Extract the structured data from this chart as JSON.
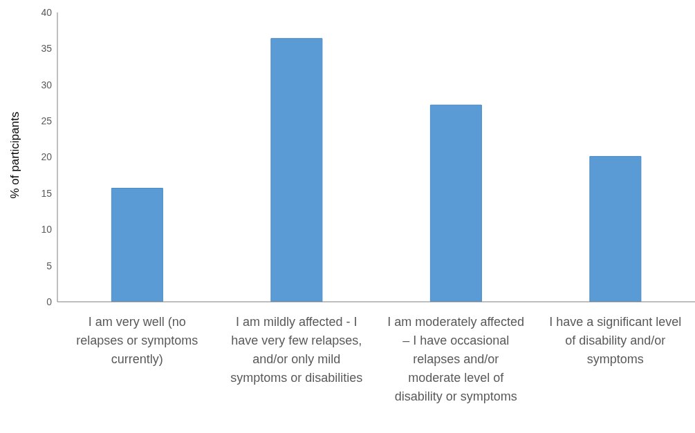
{
  "chart_data": {
    "type": "bar",
    "ylabel": "% of participants",
    "categories": [
      "I am very well (no relapses or symptoms currently)",
      "I am mildly affected - I have very few relapses, and/or only mild symptoms or disabilities",
      "I am moderately affected – I have occasional relapses and/or moderate level of disability or symptoms",
      "I have a significant level of disability and/or symptoms"
    ],
    "values": [
      15.7,
      36.4,
      27.2,
      20.1
    ],
    "color": "#5b9bd5",
    "ylim": [
      0,
      40
    ],
    "yticks": [
      0,
      5,
      10,
      15,
      20,
      25,
      30,
      35,
      40
    ],
    "grid": false,
    "legend": false
  }
}
